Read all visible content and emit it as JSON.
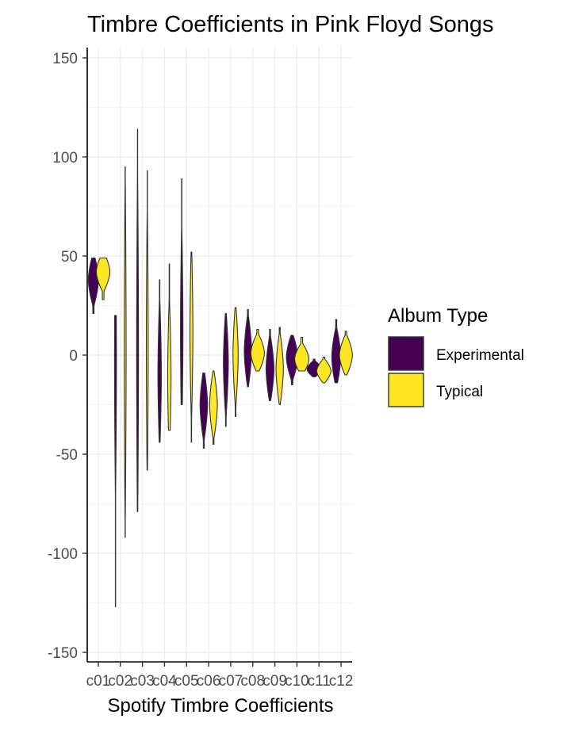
{
  "chart_data": {
    "type": "violin",
    "title": "Timbre Coefficients in Pink Floyd Songs",
    "xlabel": "Spotify Timbre Coefficients",
    "ylabel": "",
    "ylim": [
      -152,
      152
    ],
    "yticks": [
      150,
      100,
      50,
      0,
      -50,
      -100,
      -150
    ],
    "ytick_labels": [
      "150",
      "100",
      "50",
      "0",
      "-50",
      "-100",
      "-150"
    ],
    "categories": [
      "c01",
      "c02",
      "c03",
      "c04",
      "c05",
      "c06",
      "c07",
      "c08",
      "c09",
      "c10",
      "c11",
      "c12"
    ],
    "grid": true,
    "legend": {
      "title": "Album Type",
      "position": "right",
      "entries": [
        {
          "name": "Experimental",
          "color": "#440154"
        },
        {
          "name": "Typical",
          "color": "#FDE725"
        }
      ]
    },
    "series": [
      {
        "name": "Experimental",
        "color": "#440154",
        "ranges": [
          [
            21,
            49
          ],
          [
            -127,
            20
          ],
          [
            -79,
            114
          ],
          [
            -44,
            38
          ],
          [
            -25,
            89
          ],
          [
            -47,
            -9
          ],
          [
            -36,
            21
          ],
          [
            -16,
            23
          ],
          [
            -23,
            13
          ],
          [
            -15,
            10
          ],
          [
            -11,
            -2
          ],
          [
            -14,
            18
          ]
        ],
        "centers": [
          38,
          -3,
          2,
          -10,
          12,
          -25,
          -4,
          2,
          -7,
          -1,
          -7,
          -1
        ]
      },
      {
        "name": "Typical",
        "color": "#FDE725",
        "ranges": [
          [
            28,
            49
          ],
          [
            -92,
            95
          ],
          [
            -58,
            93
          ],
          [
            -38,
            46
          ],
          [
            -44,
            52
          ],
          [
            -45,
            -8
          ],
          [
            -31,
            24
          ],
          [
            -8,
            13
          ],
          [
            -25,
            14
          ],
          [
            -8,
            9
          ],
          [
            -14,
            -1
          ],
          [
            -10,
            12
          ]
        ],
        "centers": [
          42,
          2,
          4,
          -11,
          12,
          -25,
          0,
          1,
          -7,
          -2,
          -8,
          0
        ]
      }
    ]
  }
}
